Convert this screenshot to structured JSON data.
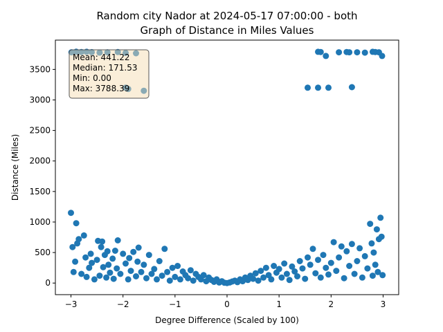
{
  "chart_data": {
    "type": "scatter",
    "title_line1": "Random city Nador at 2024-05-17 07:00:00  - both",
    "title_line2": "Graph of Distance in Miles Values",
    "xlabel": "Degree Difference (Scaled by 100)",
    "ylabel": "Distance (Miles)",
    "xlim": [
      -3.3,
      3.3
    ],
    "ylim": [
      -190,
      3980
    ],
    "x_ticks": [
      -3,
      -2,
      -1,
      0,
      1,
      2,
      3
    ],
    "y_ticks": [
      0,
      500,
      1000,
      1500,
      2000,
      2500,
      3000,
      3500
    ],
    "grid": false,
    "marker_color": "#1f77b4",
    "stats_box": {
      "mean": "Mean: 441.22",
      "median": "Median: 171.53",
      "min": "Min: 0.00",
      "max": "Max: 3788.39",
      "facecolor": "#f5deb3",
      "placement": "top-left"
    },
    "series": [
      {
        "points": [
          [
            -3.0,
            1150
          ],
          [
            -2.95,
            180
          ],
          [
            -2.92,
            350
          ],
          [
            -2.97,
            590
          ],
          [
            -2.9,
            980
          ],
          [
            -2.88,
            650
          ],
          [
            -2.85,
            720
          ],
          [
            -2.8,
            150
          ],
          [
            -2.75,
            780
          ],
          [
            -2.72,
            420
          ],
          [
            -2.7,
            100
          ],
          [
            -2.65,
            250
          ],
          [
            -2.62,
            480
          ],
          [
            -2.6,
            330
          ],
          [
            -2.55,
            60
          ],
          [
            -2.5,
            380
          ],
          [
            -2.48,
            690
          ],
          [
            -2.45,
            120
          ],
          [
            -2.42,
            590
          ],
          [
            -2.4,
            680
          ],
          [
            -2.38,
            260
          ],
          [
            -2.35,
            460
          ],
          [
            -2.32,
            90
          ],
          [
            -2.3,
            520
          ],
          [
            -2.28,
            300
          ],
          [
            -2.25,
            170
          ],
          [
            -2.2,
            400
          ],
          [
            -2.18,
            70
          ],
          [
            -2.15,
            530
          ],
          [
            -2.12,
            240
          ],
          [
            -2.1,
            700
          ],
          [
            -2.05,
            150
          ],
          [
            -2.0,
            480
          ],
          [
            -1.95,
            320
          ],
          [
            -1.9,
            60
          ],
          [
            -1.88,
            410
          ],
          [
            -1.85,
            200
          ],
          [
            -1.8,
            510
          ],
          [
            -1.75,
            110
          ],
          [
            -1.72,
            350
          ],
          [
            -1.7,
            580
          ],
          [
            -1.65,
            180
          ],
          [
            -1.6,
            300
          ],
          [
            -1.55,
            80
          ],
          [
            -1.5,
            460
          ],
          [
            -1.45,
            150
          ],
          [
            -1.4,
            230
          ],
          [
            -1.35,
            60
          ],
          [
            -1.3,
            360
          ],
          [
            -1.25,
            120
          ],
          [
            -1.2,
            560
          ],
          [
            -1.15,
            180
          ],
          [
            -1.1,
            40
          ],
          [
            -1.05,
            250
          ],
          [
            -1.0,
            100
          ],
          [
            -0.95,
            280
          ],
          [
            -0.9,
            60
          ],
          [
            -0.85,
            190
          ],
          [
            -0.8,
            130
          ],
          [
            -0.75,
            80
          ],
          [
            -0.7,
            210
          ],
          [
            -0.65,
            40
          ],
          [
            -0.6,
            150
          ],
          [
            -0.55,
            100
          ],
          [
            -0.5,
            60
          ],
          [
            -0.45,
            130
          ],
          [
            -0.4,
            30
          ],
          [
            -0.35,
            90
          ],
          [
            -0.3,
            50
          ],
          [
            -0.25,
            20
          ],
          [
            -0.2,
            60
          ],
          [
            -0.15,
            10
          ],
          [
            -0.1,
            30
          ],
          [
            -0.05,
            5
          ],
          [
            0.0,
            0
          ],
          [
            0.05,
            10
          ],
          [
            0.1,
            25
          ],
          [
            0.15,
            40
          ],
          [
            0.2,
            15
          ],
          [
            0.25,
            60
          ],
          [
            0.3,
            30
          ],
          [
            0.35,
            90
          ],
          [
            0.4,
            50
          ],
          [
            0.45,
            120
          ],
          [
            0.5,
            70
          ],
          [
            0.55,
            160
          ],
          [
            0.6,
            40
          ],
          [
            0.65,
            200
          ],
          [
            0.7,
            90
          ],
          [
            0.75,
            250
          ],
          [
            0.8,
            130
          ],
          [
            0.85,
            60
          ],
          [
            0.9,
            280
          ],
          [
            0.95,
            170
          ],
          [
            1.0,
            230
          ],
          [
            1.05,
            90
          ],
          [
            1.1,
            320
          ],
          [
            1.15,
            150
          ],
          [
            1.2,
            50
          ],
          [
            1.25,
            270
          ],
          [
            1.3,
            190
          ],
          [
            1.35,
            110
          ],
          [
            1.4,
            360
          ],
          [
            1.45,
            240
          ],
          [
            1.5,
            70
          ],
          [
            1.55,
            420
          ],
          [
            1.6,
            300
          ],
          [
            1.65,
            560
          ],
          [
            1.7,
            160
          ],
          [
            1.75,
            380
          ],
          [
            1.8,
            90
          ],
          [
            1.85,
            460
          ],
          [
            1.9,
            250
          ],
          [
            1.95,
            140
          ],
          [
            2.0,
            330
          ],
          [
            2.05,
            670
          ],
          [
            2.1,
            200
          ],
          [
            2.15,
            420
          ],
          [
            2.2,
            600
          ],
          [
            2.25,
            80
          ],
          [
            2.3,
            520
          ],
          [
            2.35,
            280
          ],
          [
            2.4,
            640
          ],
          [
            2.45,
            150
          ],
          [
            2.5,
            360
          ],
          [
            2.55,
            570
          ],
          [
            2.6,
            90
          ],
          [
            2.65,
            440
          ],
          [
            2.7,
            240
          ],
          [
            2.75,
            970
          ],
          [
            2.78,
            650
          ],
          [
            2.8,
            120
          ],
          [
            2.82,
            500
          ],
          [
            2.85,
            300
          ],
          [
            2.88,
            880
          ],
          [
            2.9,
            180
          ],
          [
            2.92,
            720
          ],
          [
            2.95,
            1070
          ],
          [
            2.97,
            760
          ],
          [
            2.99,
            130
          ],
          [
            -2.99,
            3780
          ],
          [
            -2.9,
            3790
          ],
          [
            -2.8,
            3785
          ],
          [
            -2.7,
            3788
          ],
          [
            -2.6,
            3783
          ],
          [
            -2.45,
            3775
          ],
          [
            -2.3,
            3780
          ],
          [
            -2.1,
            3785
          ],
          [
            -1.95,
            3770
          ],
          [
            -1.75,
            3765
          ],
          [
            -1.95,
            3200
          ],
          [
            -1.9,
            3180
          ],
          [
            -1.6,
            3150
          ],
          [
            1.55,
            3200
          ],
          [
            1.75,
            3200
          ],
          [
            1.75,
            3788
          ],
          [
            1.8,
            3785
          ],
          [
            1.9,
            3720
          ],
          [
            1.95,
            3200
          ],
          [
            2.15,
            3780
          ],
          [
            2.3,
            3785
          ],
          [
            2.35,
            3780
          ],
          [
            2.4,
            3210
          ],
          [
            2.5,
            3780
          ],
          [
            2.65,
            3775
          ],
          [
            2.8,
            3788
          ],
          [
            2.85,
            3785
          ],
          [
            2.92,
            3780
          ],
          [
            2.98,
            3720
          ]
        ]
      }
    ]
  }
}
